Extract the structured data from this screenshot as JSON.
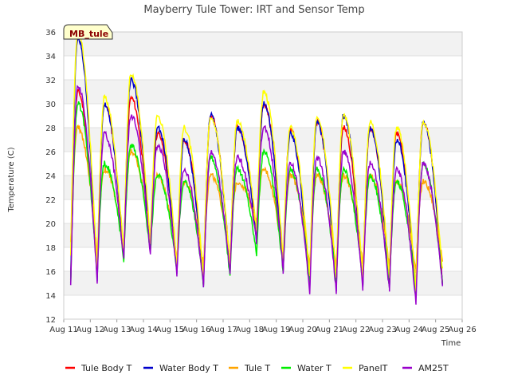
{
  "chart_data": {
    "type": "line",
    "title": "Mayberry Tule Tower: IRT and Sensor Temp",
    "xlabel": "Time",
    "ylabel": "Temperature (C)",
    "site_tag": "MB_tule",
    "x_ticks": [
      "Aug 11",
      "Aug 12",
      "Aug 13",
      "Aug 14",
      "Aug 15",
      "Aug 16",
      "Aug 17",
      "Aug 18",
      "Aug 19",
      "Aug 20",
      "Aug 21",
      "Aug 22",
      "Aug 23",
      "Aug 24",
      "Aug 25",
      "Aug 26"
    ],
    "xlim": [
      0,
      15
    ],
    "ylim": [
      12,
      36
    ],
    "y_ticks": [
      12,
      14,
      16,
      18,
      20,
      22,
      24,
      26,
      28,
      30,
      32,
      34,
      36
    ],
    "grid": "horizontal bands",
    "legend_position": "bottom",
    "series": [
      {
        "name": "Tule Body T",
        "color": "#ff0000",
        "mins": [
          15.2,
          15.4,
          17.2,
          17.8,
          16.2,
          15.0,
          16.2,
          18.8,
          16.2,
          14.8,
          14.6,
          14.8,
          14.8,
          14.0,
          15.0
        ],
        "maxs": [
          31.0,
          30.0,
          30.5,
          27.5,
          27.0,
          29.0,
          28.0,
          30.0,
          27.8,
          28.5,
          28.0,
          28.0,
          27.5,
          28.5
        ]
      },
      {
        "name": "Water Body T",
        "color": "#0000cc",
        "mins": [
          15.0,
          15.2,
          17.0,
          17.8,
          16.0,
          14.8,
          16.0,
          18.5,
          16.0,
          14.6,
          14.5,
          14.8,
          14.6,
          13.8,
          14.7
        ],
        "maxs": [
          35.5,
          30.0,
          32.0,
          28.0,
          27.0,
          29.0,
          28.0,
          30.0,
          27.5,
          28.5,
          29.0,
          28.0,
          27.0,
          28.5
        ]
      },
      {
        "name": "Tule T",
        "color": "#ffa500",
        "mins": [
          18.5,
          17.5,
          18.0,
          19.0,
          17.0,
          16.5,
          17.0,
          20.0,
          17.0,
          16.5,
          16.5,
          16.5,
          16.5,
          16.0,
          17.0
        ],
        "maxs": [
          28.0,
          24.5,
          26.0,
          24.0,
          23.5,
          24.0,
          23.5,
          24.5,
          24.0,
          24.0,
          24.0,
          24.0,
          23.5,
          23.5
        ]
      },
      {
        "name": "Water T",
        "color": "#00ee00",
        "mins": [
          15.0,
          15.5,
          17.0,
          17.5,
          16.0,
          15.0,
          15.5,
          17.5,
          16.0,
          15.0,
          15.0,
          15.0,
          14.8,
          14.0,
          15.0
        ],
        "maxs": [
          30.0,
          25.0,
          26.5,
          24.0,
          23.5,
          25.5,
          24.5,
          26.0,
          24.5,
          24.5,
          24.5,
          24.0,
          23.5,
          25.0
        ]
      },
      {
        "name": "PanelT",
        "color": "#ffff00",
        "mins": [
          17.5,
          16.0,
          17.5,
          18.5,
          16.5,
          15.5,
          16.5,
          19.5,
          17.0,
          15.5,
          15.5,
          15.5,
          15.5,
          14.5,
          16.0
        ],
        "maxs": [
          36.0,
          30.5,
          32.5,
          29.0,
          28.0,
          29.0,
          28.5,
          31.0,
          28.0,
          29.0,
          29.0,
          28.5,
          28.0,
          28.5
        ]
      },
      {
        "name": "AM25T",
        "color": "#9900cc",
        "mins": [
          14.6,
          15.2,
          17.0,
          17.5,
          15.8,
          14.7,
          15.8,
          18.5,
          16.0,
          14.2,
          14.3,
          14.6,
          14.4,
          13.3,
          14.8
        ],
        "maxs": [
          31.5,
          27.5,
          29.0,
          26.5,
          24.5,
          26.0,
          25.5,
          28.0,
          25.0,
          25.5,
          26.0,
          25.0,
          24.5,
          25.0
        ]
      }
    ]
  }
}
